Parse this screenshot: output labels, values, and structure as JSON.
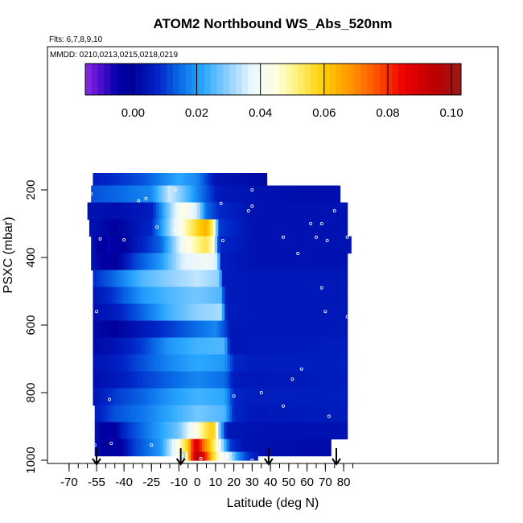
{
  "chart_data": {
    "type": "heatmap",
    "title": "ATOM2 Northbound WS_Abs_520nm",
    "subtitle_flights": "Flts: 6,7,8,9,10",
    "subtitle_dates": "MMDD: 0210,0213,0215,0218,0219",
    "xlabel": "Latitude (deg N)",
    "ylabel": "PSXC (mbar)",
    "xlim": [
      -70,
      85
    ],
    "ylim": [
      1000,
      100
    ],
    "x_ticks": [
      "-70",
      "-55",
      "-40",
      "-25",
      "-10",
      "0",
      "10",
      "20",
      "30",
      "40",
      "50",
      "60",
      "70",
      "80"
    ],
    "x_tick_values": [
      -70,
      -55,
      -40,
      -25,
      -10,
      0,
      10,
      20,
      30,
      40,
      50,
      60,
      70,
      80
    ],
    "y_ticks": [
      "200",
      "400",
      "600",
      "800",
      "1000"
    ],
    "y_tick_values": [
      200,
      400,
      600,
      800,
      1000
    ],
    "colorbar": {
      "min": -0.015,
      "max": 0.103,
      "tick_values": [
        0.0,
        0.02,
        0.04,
        0.06,
        0.08,
        0.1
      ],
      "tick_labels": [
        "0.00",
        "0.02",
        "0.04",
        "0.06",
        "0.08",
        "0.10"
      ],
      "color_stops": [
        {
          "v": -0.015,
          "c": "#8a2be2"
        },
        {
          "v": -0.01,
          "c": "#4b0dcc"
        },
        {
          "v": -0.005,
          "c": "#0000a8"
        },
        {
          "v": 0.0,
          "c": "#00009c"
        },
        {
          "v": 0.008,
          "c": "#0026c8"
        },
        {
          "v": 0.015,
          "c": "#0a6ee8"
        },
        {
          "v": 0.022,
          "c": "#2aa8ff"
        },
        {
          "v": 0.03,
          "c": "#8fd0ff"
        },
        {
          "v": 0.037,
          "c": "#e8f6ff"
        },
        {
          "v": 0.045,
          "c": "#ffffe0"
        },
        {
          "v": 0.052,
          "c": "#fff070"
        },
        {
          "v": 0.06,
          "c": "#ffcc00"
        },
        {
          "v": 0.068,
          "c": "#ff9900"
        },
        {
          "v": 0.076,
          "c": "#ff5500"
        },
        {
          "v": 0.085,
          "c": "#ee0000"
        },
        {
          "v": 0.095,
          "c": "#bb0000"
        },
        {
          "v": 0.103,
          "c": "#9a1a1a"
        }
      ]
    },
    "rows": [
      {
        "p": 175,
        "lat_min": -57,
        "lat_max": 38,
        "kp": [
          [
            -57,
            0.006
          ],
          [
            -30,
            0.012
          ],
          [
            -10,
            0.022
          ],
          [
            0,
            0.018
          ],
          [
            10,
            0.004
          ],
          [
            38,
            0.002
          ]
        ]
      },
      {
        "p": 212,
        "lat_min": -58,
        "lat_max": 78,
        "kp": [
          [
            -58,
            0.012
          ],
          [
            -40,
            0.015
          ],
          [
            -25,
            0.018
          ],
          [
            -15,
            0.035
          ],
          [
            -8,
            0.028
          ],
          [
            0,
            0.018
          ],
          [
            12,
            0.005
          ],
          [
            30,
            0.004
          ],
          [
            60,
            0.003
          ],
          [
            78,
            0.003
          ]
        ]
      },
      {
        "p": 262,
        "lat_min": -60,
        "lat_max": 82,
        "kp": [
          [
            -60,
            0.004
          ],
          [
            -45,
            0.003
          ],
          [
            -25,
            0.006
          ],
          [
            -15,
            0.03
          ],
          [
            -8,
            0.045
          ],
          [
            0,
            0.035
          ],
          [
            5,
            0.015
          ],
          [
            12,
            0.008
          ],
          [
            30,
            0.004
          ],
          [
            82,
            0.004
          ]
        ]
      },
      {
        "p": 312,
        "lat_min": -59,
        "lat_max": 82,
        "kp": [
          [
            -59,
            0.004
          ],
          [
            -45,
            0.0
          ],
          [
            -25,
            0.008
          ],
          [
            -12,
            0.038
          ],
          [
            -5,
            0.05
          ],
          [
            0,
            0.058
          ],
          [
            5,
            0.064
          ],
          [
            9,
            0.05
          ],
          [
            12,
            0.01
          ],
          [
            30,
            0.004
          ],
          [
            82,
            0.004
          ]
        ]
      },
      {
        "p": 362,
        "lat_min": -58,
        "lat_max": 84,
        "kp": [
          [
            -58,
            0.005
          ],
          [
            -48,
            -0.006
          ],
          [
            -35,
            0.004
          ],
          [
            -20,
            0.014
          ],
          [
            -8,
            0.04
          ],
          [
            0,
            0.05
          ],
          [
            5,
            0.055
          ],
          [
            9,
            0.045
          ],
          [
            12,
            0.008
          ],
          [
            30,
            0.004
          ],
          [
            84,
            0.004
          ]
        ]
      },
      {
        "p": 412,
        "lat_min": -58,
        "lat_max": 82,
        "kp": [
          [
            -58,
            0.005
          ],
          [
            -47,
            -0.004
          ],
          [
            -35,
            0.01
          ],
          [
            -20,
            0.02
          ],
          [
            -8,
            0.036
          ],
          [
            5,
            0.04
          ],
          [
            11,
            0.035
          ],
          [
            13,
            0.006
          ],
          [
            30,
            0.004
          ],
          [
            82,
            0.004
          ]
        ]
      },
      {
        "p": 462,
        "lat_min": -57,
        "lat_max": 82,
        "kp": [
          [
            -57,
            0.008
          ],
          [
            -45,
            0.015
          ],
          [
            -30,
            0.025
          ],
          [
            -15,
            0.03
          ],
          [
            0,
            0.034
          ],
          [
            12,
            0.03
          ],
          [
            14,
            0.006
          ],
          [
            30,
            0.005
          ],
          [
            82,
            0.005
          ]
        ]
      },
      {
        "p": 512,
        "lat_min": -57,
        "lat_max": 82,
        "kp": [
          [
            -57,
            0.004
          ],
          [
            -45,
            0.01
          ],
          [
            -30,
            0.02
          ],
          [
            -15,
            0.025
          ],
          [
            0,
            0.028
          ],
          [
            13,
            0.025
          ],
          [
            15,
            0.006
          ],
          [
            30,
            0.005
          ],
          [
            82,
            0.005
          ]
        ]
      },
      {
        "p": 562,
        "lat_min": -57,
        "lat_max": 82,
        "kp": [
          [
            -57,
            0.003
          ],
          [
            -45,
            0.006
          ],
          [
            -30,
            0.014
          ],
          [
            -15,
            0.024
          ],
          [
            0,
            0.03
          ],
          [
            13,
            0.032
          ],
          [
            16,
            0.006
          ],
          [
            30,
            0.005
          ],
          [
            82,
            0.005
          ]
        ]
      },
      {
        "p": 612,
        "lat_min": -57,
        "lat_max": 82,
        "kp": [
          [
            -57,
            0.002
          ],
          [
            -45,
            0.0
          ],
          [
            -30,
            0.005
          ],
          [
            -15,
            0.01
          ],
          [
            0,
            0.015
          ],
          [
            10,
            0.018
          ],
          [
            16,
            0.01
          ],
          [
            18,
            0.005
          ],
          [
            82,
            0.005
          ]
        ]
      },
      {
        "p": 662,
        "lat_min": -57,
        "lat_max": 82,
        "kp": [
          [
            -57,
            0.002
          ],
          [
            -45,
            0.004
          ],
          [
            -30,
            0.01
          ],
          [
            -15,
            0.02
          ],
          [
            0,
            0.024
          ],
          [
            15,
            0.025
          ],
          [
            17,
            0.01
          ],
          [
            19,
            0.005
          ],
          [
            82,
            0.006
          ]
        ]
      },
      {
        "p": 712,
        "lat_min": -57,
        "lat_max": 82,
        "kp": [
          [
            -57,
            0.004
          ],
          [
            -45,
            0.006
          ],
          [
            -30,
            0.012
          ],
          [
            -15,
            0.018
          ],
          [
            0,
            0.022
          ],
          [
            15,
            0.02
          ],
          [
            20,
            0.008
          ],
          [
            30,
            0.006
          ],
          [
            82,
            0.006
          ]
        ]
      },
      {
        "p": 762,
        "lat_min": -57,
        "lat_max": 82,
        "kp": [
          [
            -57,
            0.003
          ],
          [
            -45,
            0.005
          ],
          [
            -30,
            0.01
          ],
          [
            -15,
            0.014
          ],
          [
            0,
            0.018
          ],
          [
            15,
            0.015
          ],
          [
            20,
            0.006
          ],
          [
            30,
            0.005
          ],
          [
            82,
            0.006
          ]
        ]
      },
      {
        "p": 812,
        "lat_min": -57,
        "lat_max": 82,
        "kp": [
          [
            -57,
            0.004
          ],
          [
            -45,
            0.01
          ],
          [
            -30,
            0.014
          ],
          [
            -15,
            0.02
          ],
          [
            0,
            0.024
          ],
          [
            15,
            0.022
          ],
          [
            20,
            0.008
          ],
          [
            30,
            0.006
          ],
          [
            82,
            0.006
          ]
        ]
      },
      {
        "p": 862,
        "lat_min": -56,
        "lat_max": 82,
        "kp": [
          [
            -56,
            0.006
          ],
          [
            -45,
            0.012
          ],
          [
            -30,
            0.016
          ],
          [
            -15,
            0.022
          ],
          [
            0,
            0.028
          ],
          [
            15,
            0.025
          ],
          [
            20,
            0.008
          ],
          [
            30,
            0.005
          ],
          [
            82,
            0.006
          ]
        ]
      },
      {
        "p": 912,
        "lat_min": -56,
        "lat_max": 82,
        "kp": [
          [
            -56,
            0.004
          ],
          [
            -48,
            -0.005
          ],
          [
            -40,
            0.008
          ],
          [
            -25,
            0.018
          ],
          [
            -10,
            0.028
          ],
          [
            0,
            0.045
          ],
          [
            5,
            0.055
          ],
          [
            9,
            0.06
          ],
          [
            12,
            0.03
          ],
          [
            16,
            0.005
          ],
          [
            30,
            0.004
          ],
          [
            82,
            0.004
          ]
        ]
      },
      {
        "p": 962,
        "lat_min": -56,
        "lat_max": 73,
        "kp": [
          [
            -56,
            0.003
          ],
          [
            -50,
            0.0
          ],
          [
            -45,
            -0.005
          ],
          [
            -35,
            0.01
          ],
          [
            -20,
            0.02
          ],
          [
            -10,
            0.045
          ],
          [
            -5,
            0.06
          ],
          [
            -2,
            0.085
          ],
          [
            0,
            0.09
          ],
          [
            3,
            0.075
          ],
          [
            7,
            0.06
          ],
          [
            10,
            0.05
          ],
          [
            14,
            0.03
          ],
          [
            18,
            0.01
          ],
          [
            25,
            0.004
          ],
          [
            73,
            0.002
          ]
        ]
      },
      {
        "p": 1000,
        "lat_min": -8,
        "lat_max": 33,
        "kp": [
          [
            -8,
            0.02
          ],
          [
            -5,
            0.06
          ],
          [
            -2,
            0.088
          ],
          [
            0,
            0.095
          ],
          [
            4,
            0.085
          ],
          [
            8,
            0.06
          ],
          [
            12,
            0.045
          ],
          [
            18,
            0.035
          ],
          [
            22,
            0.02
          ],
          [
            27,
            0.01
          ],
          [
            33,
            0.005
          ]
        ]
      }
    ],
    "sample_points": [
      [
        -58,
        212
      ],
      [
        -12,
        200
      ],
      [
        -28,
        226
      ],
      [
        -32,
        232
      ],
      [
        -40,
        348
      ],
      [
        -22,
        310
      ],
      [
        -12,
        320
      ],
      [
        30,
        200
      ],
      [
        13,
        240
      ],
      [
        28,
        262
      ],
      [
        30,
        248
      ],
      [
        62,
        300
      ],
      [
        68,
        300
      ],
      [
        75,
        262
      ],
      [
        82,
        340
      ],
      [
        71,
        350
      ],
      [
        65,
        340
      ],
      [
        55,
        388
      ],
      [
        47,
        340
      ],
      [
        -53,
        345
      ],
      [
        -55,
        560
      ],
      [
        -48,
        820
      ],
      [
        -25,
        955
      ],
      [
        -47,
        950
      ],
      [
        -56,
        955
      ],
      [
        14,
        350
      ],
      [
        20,
        810
      ],
      [
        35,
        800
      ],
      [
        47,
        840
      ],
      [
        52,
        760
      ],
      [
        57,
        730
      ],
      [
        68,
        490
      ],
      [
        70,
        560
      ],
      [
        72,
        870
      ],
      [
        75,
        950
      ],
      [
        82,
        575
      ],
      [
        30,
        1000
      ],
      [
        -8,
        985
      ],
      [
        16,
        990
      ],
      [
        2,
        995
      ]
    ],
    "arrows": [
      -55,
      -9,
      39,
      76
    ]
  }
}
